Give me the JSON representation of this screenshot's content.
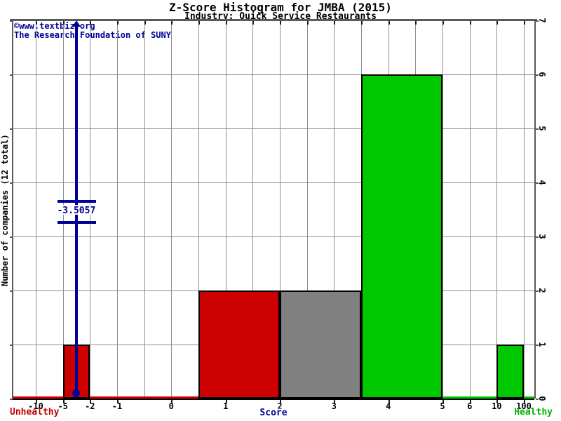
{
  "chart_data": {
    "type": "bar",
    "title": "Z-Score Histogram for JMBA (2015)",
    "subtitle": "Industry: Quick Service Restaurants",
    "xlabel": "Score",
    "ylabel": "Number of companies (12 total)",
    "total_companies": 12,
    "x_tick_values": [
      -10,
      -5,
      -2,
      -1,
      0,
      1,
      2,
      3,
      4,
      5,
      6,
      10,
      100
    ],
    "x_tick_labels": [
      "-10",
      "-5",
      "-2",
      "-1",
      "0",
      "1",
      "2",
      "3",
      "4",
      "5",
      "6",
      "10",
      "100"
    ],
    "y_ticks": [
      0,
      1,
      2,
      3,
      4,
      5,
      6,
      7
    ],
    "ylim": [
      0,
      7
    ],
    "grid": true,
    "legend": false,
    "bars": [
      {
        "x_from": -5,
        "x_to": -2,
        "count": 1,
        "zone": "unhealthy"
      },
      {
        "x_from": 0.5,
        "x_to": 2,
        "count": 2,
        "zone": "unhealthy"
      },
      {
        "x_from": 2,
        "x_to": 3.5,
        "count": 2,
        "zone": "neutral"
      },
      {
        "x_from": 3.5,
        "x_to": 5,
        "count": 6,
        "zone": "healthy"
      },
      {
        "x_from": 10,
        "x_to": 100,
        "count": 1,
        "zone": "healthy"
      }
    ],
    "baseline_segments": [
      {
        "x_from": -10,
        "x_to": 0.5,
        "zone": "unhealthy",
        "extend_to_left_edge": true
      },
      {
        "x_from": 5,
        "x_to": 100,
        "zone": "healthy",
        "extend_to_right_edge": true
      }
    ],
    "marker": {
      "value": -3.5057,
      "label": "-3.5057"
    },
    "zone_colors": {
      "unhealthy": "#cc0000",
      "neutral": "#808080",
      "healthy": "#00c800"
    },
    "marker_color": "#000099",
    "annotations": {
      "copyright": "©www.textbiz.org",
      "foundation": "The Research Foundation of SUNY",
      "left_zone": "Unhealthy",
      "right_zone": "Healthy"
    }
  }
}
